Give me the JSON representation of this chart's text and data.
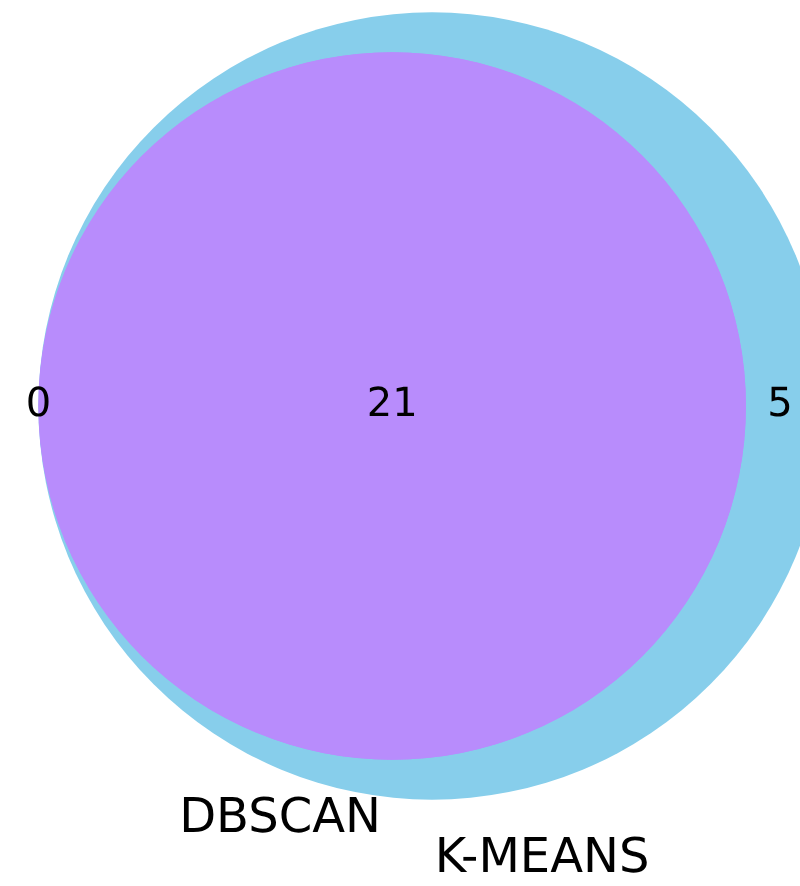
{
  "chart_data": {
    "type": "other",
    "categories": [
      null,
      null,
      null
    ],
    "values": [
      0,
      21,
      5
    ],
    "colors": [
      "#b88cfc",
      "#b88cfc",
      "#87ceeb"
    ],
    "annotations": [
      "DBSCAN",
      "K-MEANS"
    ],
    "data_labels": true
  }
}
